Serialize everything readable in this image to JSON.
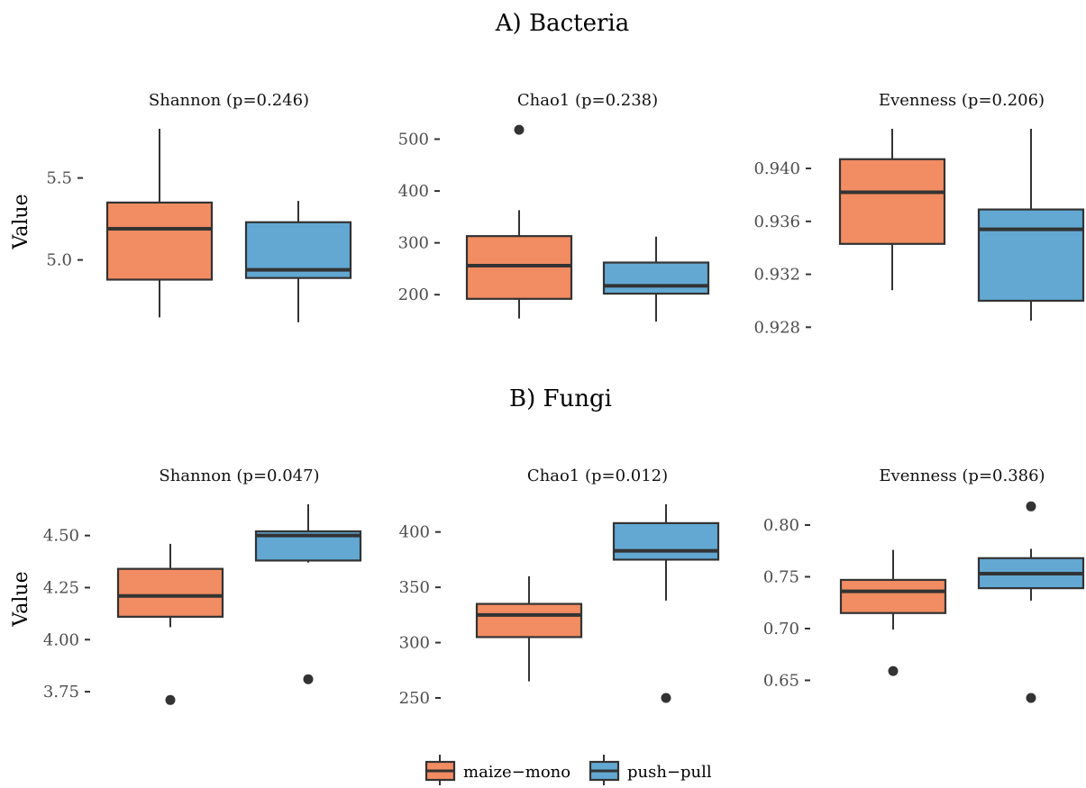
{
  "colors": {
    "maize_mono": "#f28c62",
    "push_pull": "#62a8d3",
    "line": "#333333"
  },
  "legend": {
    "items": [
      {
        "key": "maize_mono",
        "label": "maize−mono"
      },
      {
        "key": "push_pull",
        "label": "push−pull"
      }
    ],
    "position": "bottom"
  },
  "chart_data": [
    {
      "section": "A) Bacteria",
      "ylabel": "Value",
      "panels": [
        {
          "type": "box",
          "title": "Shannon (p=0.246)",
          "ylim": [
            4.63,
            5.8
          ],
          "yticks": [
            5.0,
            5.5
          ],
          "tick_labels": [
            "5.0",
            "5.5"
          ],
          "groups": [
            {
              "name": "maize−mono",
              "min": 4.65,
              "q1": 4.88,
              "median": 5.19,
              "q3": 5.35,
              "max": 5.8,
              "outliers": []
            },
            {
              "name": "push−pull",
              "min": 4.62,
              "q1": 4.89,
              "median": 4.94,
              "q3": 5.23,
              "max": 5.36,
              "outliers": []
            }
          ]
        },
        {
          "type": "box",
          "title": "Chao1 (p=0.238)",
          "ylim": [
            150,
            520
          ],
          "yticks": [
            200,
            300,
            400,
            500
          ],
          "tick_labels": [
            "200",
            "300",
            "400",
            "500"
          ],
          "groups": [
            {
              "name": "maize−mono",
              "min": 154,
              "q1": 192,
              "median": 256,
              "q3": 313,
              "max": 363,
              "outliers": [
                518
              ]
            },
            {
              "name": "push−pull",
              "min": 148,
              "q1": 202,
              "median": 217,
              "q3": 262,
              "max": 312,
              "outliers": []
            }
          ]
        },
        {
          "type": "box",
          "title": "Evenness (p=0.206)",
          "ylim": [
            0.9285,
            0.943
          ],
          "yticks": [
            0.928,
            0.932,
            0.936,
            0.94
          ],
          "tick_labels": [
            "0.928",
            "0.932",
            "0.936",
            "0.940"
          ],
          "groups": [
            {
              "name": "maize−mono",
              "min": 0.9308,
              "q1": 0.9343,
              "median": 0.9382,
              "q3": 0.9407,
              "max": 0.943,
              "outliers": []
            },
            {
              "name": "push−pull",
              "min": 0.9285,
              "q1": 0.93,
              "median": 0.9354,
              "q3": 0.9369,
              "max": 0.943,
              "outliers": []
            }
          ]
        }
      ]
    },
    {
      "section": "B) Fungi",
      "ylabel": "Value",
      "panels": [
        {
          "type": "box",
          "title": "Shannon (p=0.047)",
          "ylim": [
            3.72,
            4.65
          ],
          "yticks": [
            3.75,
            4.0,
            4.25,
            4.5
          ],
          "tick_labels": [
            "3.75",
            "4.00",
            "4.25",
            "4.50"
          ],
          "groups": [
            {
              "name": "maize−mono",
              "min": 4.06,
              "q1": 4.11,
              "median": 4.21,
              "q3": 4.34,
              "max": 4.46,
              "outliers": [
                3.71
              ]
            },
            {
              "name": "push−pull",
              "min": 4.37,
              "q1": 4.38,
              "median": 4.5,
              "q3": 4.52,
              "max": 4.65,
              "outliers": [
                3.81
              ]
            }
          ]
        },
        {
          "type": "box",
          "title": "Chao1 (p=0.012)",
          "ylim": [
            250,
            425
          ],
          "yticks": [
            250,
            300,
            350,
            400
          ],
          "tick_labels": [
            "250",
            "300",
            "350",
            "400"
          ],
          "groups": [
            {
              "name": "maize−mono",
              "min": 265,
              "q1": 305,
              "median": 325,
              "q3": 335,
              "max": 360,
              "outliers": []
            },
            {
              "name": "push−pull",
              "min": 338,
              "q1": 375,
              "median": 383,
              "q3": 408,
              "max": 425,
              "outliers": [
                250
              ]
            }
          ]
        },
        {
          "type": "box",
          "title": "Evenness (p=0.386)",
          "ylim": [
            0.633,
            0.82
          ],
          "yticks": [
            0.65,
            0.7,
            0.75,
            0.8
          ],
          "tick_labels": [
            "0.65",
            "0.70",
            "0.75",
            "0.80"
          ],
          "groups": [
            {
              "name": "maize−mono",
              "min": 0.699,
              "q1": 0.715,
              "median": 0.736,
              "q3": 0.747,
              "max": 0.776,
              "outliers": [
                0.659
              ]
            },
            {
              "name": "push−pull",
              "min": 0.727,
              "q1": 0.739,
              "median": 0.753,
              "q3": 0.768,
              "max": 0.777,
              "outliers": [
                0.633,
                0.818
              ]
            }
          ]
        }
      ]
    }
  ]
}
